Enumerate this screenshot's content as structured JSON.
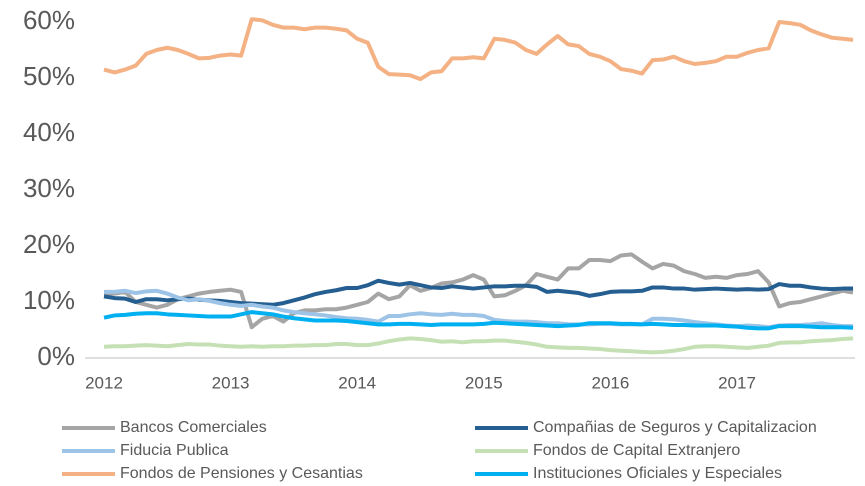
{
  "chart_data": {
    "type": "line",
    "categories": [
      "2012",
      null,
      null,
      null,
      null,
      null,
      null,
      null,
      null,
      null,
      null,
      null,
      "2013",
      null,
      null,
      null,
      null,
      null,
      null,
      null,
      null,
      null,
      null,
      null,
      "2014",
      null,
      null,
      null,
      null,
      null,
      null,
      null,
      null,
      null,
      null,
      null,
      "2015",
      null,
      null,
      null,
      null,
      null,
      null,
      null,
      null,
      null,
      null,
      null,
      "2016",
      null,
      null,
      null,
      null,
      null,
      null,
      null,
      null,
      null,
      null,
      null,
      "2017",
      null,
      null,
      null,
      null,
      null,
      null,
      null,
      null,
      null,
      null,
      null
    ],
    "ylim": [
      0,
      60
    ],
    "yticks": [
      {
        "value": 0,
        "label": "0%"
      },
      {
        "value": 10,
        "label": "10%"
      },
      {
        "value": 20,
        "label": "20%"
      },
      {
        "value": 30,
        "label": "30%"
      },
      {
        "value": 40,
        "label": "40%"
      },
      {
        "value": 50,
        "label": "50%"
      },
      {
        "value": 60,
        "label": "60%"
      }
    ],
    "grid": false,
    "legend": "bottom",
    "series": [
      {
        "name": "Bancos Comerciales",
        "color": "#a5a5a5",
        "values": [
          11.5,
          11.5,
          11.8,
          10,
          9.5,
          9,
          9.5,
          10.5,
          11,
          11.5,
          11.8,
          12,
          12.2,
          11.8,
          5.5,
          7,
          7.5,
          6.5,
          8,
          8.5,
          8.5,
          8.7,
          8.7,
          9,
          9.5,
          10,
          11.5,
          10.5,
          11,
          13,
          12,
          12.5,
          13.3,
          13.5,
          14,
          14.8,
          14,
          11,
          11.2,
          12,
          13,
          15,
          14.5,
          14,
          16,
          16,
          17.5,
          17.5,
          17.3,
          18.3,
          18.5,
          17.2,
          16,
          16.8,
          16.5,
          15.5,
          15,
          14.3,
          14.5,
          14.3,
          14.8,
          15,
          15.5,
          13.5,
          9.2,
          9.8,
          10,
          10.5,
          11,
          11.5,
          12,
          11.7
        ]
      },
      {
        "name": "Compañias de Seguros y Capitalizacion",
        "color": "#255e91",
        "values": [
          11,
          10.7,
          10.6,
          10,
          10.5,
          10.5,
          10.3,
          10.5,
          10.6,
          10.4,
          10.3,
          10.2,
          10,
          9.8,
          9.7,
          9.6,
          9.5,
          9.8,
          10.3,
          10.8,
          11.4,
          11.8,
          12.1,
          12.5,
          12.5,
          13,
          13.8,
          13.4,
          13.1,
          13.4,
          13,
          12.6,
          12.5,
          12.8,
          12.6,
          12.4,
          12.6,
          12.8,
          12.8,
          12.9,
          12.9,
          12.7,
          11.8,
          12,
          11.8,
          11.6,
          11.1,
          11.4,
          11.8,
          11.9,
          11.9,
          12,
          12.6,
          12.6,
          12.4,
          12.4,
          12.2,
          12.3,
          12.4,
          12.3,
          12.2,
          12.3,
          12.2,
          12.3,
          13.2,
          12.9,
          12.9,
          12.6,
          12.4,
          12.3,
          12.4,
          12.4
        ]
      },
      {
        "name": "Fiducia Publica",
        "color": "#9dc3e6",
        "values": [
          11.8,
          11.8,
          12,
          11.6,
          11.9,
          12,
          11.5,
          10.8,
          10.3,
          10.5,
          10.2,
          9.8,
          9.5,
          9.3,
          9.5,
          9.2,
          9,
          8.5,
          8.2,
          8,
          7.8,
          7.6,
          7.3,
          7.1,
          7,
          6.8,
          6.5,
          7.5,
          7.5,
          7.8,
          8,
          7.8,
          7.7,
          7.9,
          7.7,
          7.7,
          7.5,
          6.8,
          6.6,
          6.5,
          6.5,
          6.4,
          6.2,
          6.2,
          6,
          6,
          6,
          6.1,
          6.1,
          6,
          6,
          6,
          7,
          7,
          6.9,
          6.7,
          6.4,
          6.2,
          6,
          5.8,
          5.7,
          5.8,
          5.7,
          5.5,
          5.8,
          5.9,
          5.9,
          6,
          6.2,
          5.9,
          5.7,
          5.7
        ]
      },
      {
        "name": "Fondos de Capital Extranjero",
        "color": "#c5e0b4",
        "values": [
          2,
          2.1,
          2.1,
          2.2,
          2.3,
          2.2,
          2.1,
          2.3,
          2.5,
          2.4,
          2.4,
          2.2,
          2.1,
          2,
          2.1,
          2,
          2.1,
          2.1,
          2.2,
          2.2,
          2.3,
          2.3,
          2.5,
          2.5,
          2.3,
          2.3,
          2.6,
          3,
          3.3,
          3.5,
          3.4,
          3.2,
          2.9,
          3,
          2.8,
          3,
          3,
          3.1,
          3.1,
          2.9,
          2.7,
          2.4,
          2,
          1.9,
          1.8,
          1.8,
          1.7,
          1.6,
          1.4,
          1.3,
          1.2,
          1.1,
          1,
          1.1,
          1.3,
          1.6,
          2,
          2.1,
          2.1,
          2,
          1.9,
          1.8,
          2,
          2.2,
          2.7,
          2.8,
          2.8,
          3,
          3.1,
          3.2,
          3.4,
          3.5
        ]
      },
      {
        "name": "Fondos de Pensiones y Cesantias",
        "color": "#f4b183",
        "values": [
          51.5,
          51,
          51.5,
          52.2,
          54.3,
          55,
          55.4,
          55,
          54.3,
          53.5,
          53.6,
          54,
          54.2,
          54,
          60.5,
          60.3,
          59.5,
          59,
          59,
          58.7,
          59,
          59,
          58.8,
          58.5,
          57,
          56.3,
          52,
          50.7,
          50.6,
          50.5,
          49.8,
          51,
          51.2,
          53.5,
          53.5,
          53.7,
          53.5,
          57,
          56.8,
          56.3,
          55,
          54.3,
          56,
          57.5,
          56,
          55.7,
          54.3,
          53.8,
          53,
          51.6,
          51.3,
          50.8,
          53.2,
          53.3,
          53.8,
          53,
          52.5,
          52.7,
          53,
          53.8,
          53.8,
          54.5,
          55,
          55.3,
          60,
          59.8,
          59.5,
          58.5,
          57.8,
          57.2,
          57,
          56.8
        ]
      },
      {
        "name": "Instituciones Oficiales y Especiales",
        "color": "#00b0f0",
        "values": [
          7.2,
          7.6,
          7.7,
          7.9,
          8,
          8,
          7.8,
          7.7,
          7.6,
          7.5,
          7.4,
          7.4,
          7.4,
          7.8,
          8.2,
          8,
          7.8,
          7.4,
          7.1,
          6.9,
          6.7,
          6.7,
          6.7,
          6.6,
          6.4,
          6.2,
          6,
          6,
          6.1,
          6.1,
          6,
          5.9,
          6,
          6,
          6,
          6,
          6.1,
          6.3,
          6.2,
          6.1,
          6,
          5.9,
          5.8,
          5.7,
          5.8,
          5.9,
          6.2,
          6.2,
          6.2,
          6.1,
          6.1,
          6,
          6.1,
          6,
          5.9,
          5.9,
          5.8,
          5.8,
          5.8,
          5.7,
          5.6,
          5.4,
          5.3,
          5.3,
          5.7,
          5.7,
          5.7,
          5.6,
          5.5,
          5.5,
          5.5,
          5.4
        ]
      }
    ]
  }
}
